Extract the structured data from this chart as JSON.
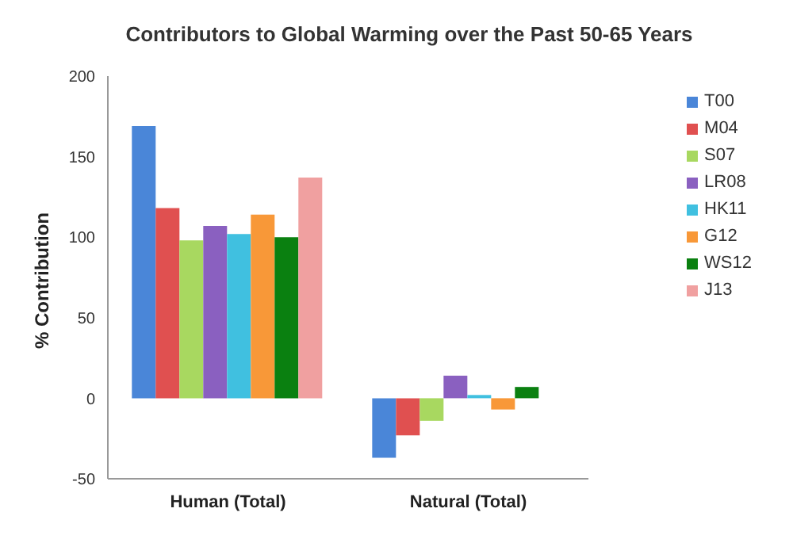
{
  "chart_data": {
    "type": "bar",
    "title": "Contributors to Global Warming over the Past 50-65 Years",
    "ylabel": "% Contribution",
    "categories": [
      "Human (Total)",
      "Natural (Total)"
    ],
    "series": [
      {
        "name": "T00",
        "color": "#4a86d8",
        "values": [
          169,
          -37
        ]
      },
      {
        "name": "M04",
        "color": "#e05050",
        "values": [
          118,
          -23
        ]
      },
      {
        "name": "S07",
        "color": "#a8d860",
        "values": [
          98,
          -14
        ]
      },
      {
        "name": "LR08",
        "color": "#8a60c0",
        "values": [
          107,
          14
        ]
      },
      {
        "name": "HK11",
        "color": "#40c0e0",
        "values": [
          102,
          2
        ]
      },
      {
        "name": "G12",
        "color": "#f89838",
        "values": [
          114,
          -7
        ]
      },
      {
        "name": "WS12",
        "color": "#0a8010",
        "values": [
          100,
          7
        ]
      },
      {
        "name": "J13",
        "color": "#f0a0a0",
        "values": [
          137,
          0
        ]
      }
    ],
    "ylim": [
      -50,
      200
    ],
    "yticks": [
      -50,
      0,
      50,
      100,
      150,
      200
    ],
    "grid": false,
    "legend": "right"
  }
}
